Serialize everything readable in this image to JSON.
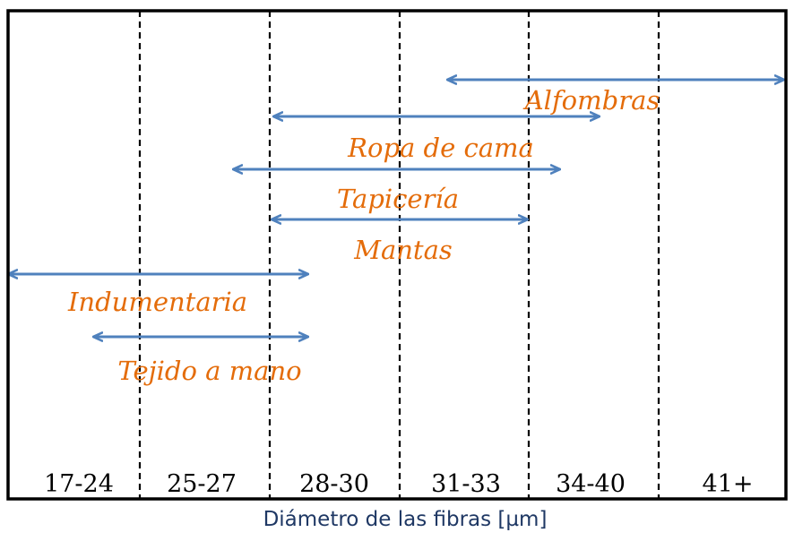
{
  "diagram": {
    "axis_title": "Diámetro de las fibras [µm]",
    "categories": [
      "17-24",
      "25-27",
      "28-30",
      "31-33",
      "34-40",
      "41+"
    ],
    "arrow_color": "#4F81BD",
    "label_color": "#E46C0A",
    "ranges": [
      {
        "label": "Alfombras",
        "from": "31-33",
        "to": "41+"
      },
      {
        "label": "Ropa de cama",
        "from": "28-30",
        "to": "34-40"
      },
      {
        "label": "Tapicería",
        "from": "25-27",
        "to": "34-40"
      },
      {
        "label": "Mantas",
        "from": "28-30",
        "to": "31-33"
      },
      {
        "label": "Indumentaria",
        "from": "17-24",
        "to": "28-30"
      },
      {
        "label": "Tejido a mano",
        "from": "17-24",
        "to": "28-30"
      }
    ]
  }
}
